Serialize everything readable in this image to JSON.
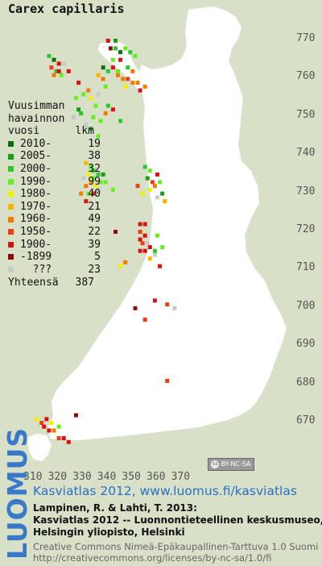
{
  "title": "Carex capillaris",
  "legend": {
    "heading_line1": "Vuusimman",
    "heading_line2": "havainnon",
    "heading_col1": "vuosi",
    "heading_col2": "lkm",
    "entries": [
      {
        "label": "2010-",
        "count": "19",
        "color": "#0a6e0a"
      },
      {
        "label": "2005-",
        "count": "38",
        "color": "#1a9a1a"
      },
      {
        "label": "2000-",
        "count": "32",
        "color": "#2ec82e"
      },
      {
        "label": "1990-",
        "count": "99",
        "color": "#66ee22"
      },
      {
        "label": "1980-",
        "count": "40",
        "color": "#f2f200"
      },
      {
        "label": "1970-",
        "count": "21",
        "color": "#f6b400"
      },
      {
        "label": "1960-",
        "count": "49",
        "color": "#f37a00"
      },
      {
        "label": "1950-",
        "count": "22",
        "color": "#e84010"
      },
      {
        "label": "1900-",
        "count": "39",
        "color": "#d41414"
      },
      {
        "label": "-1899",
        "count": "5",
        "color": "#8a0d0d"
      },
      {
        "label": "???",
        "count": "23",
        "color": "#c8c8c8"
      }
    ],
    "total_label": "Yhteensä",
    "total_count": "387"
  },
  "y_axis_labels": [
    "770",
    "760",
    "750",
    "740",
    "730",
    "720",
    "710",
    "700",
    "690",
    "680",
    "670"
  ],
  "x_axis_labels": [
    "310",
    "320",
    "330",
    "340",
    "350",
    "360",
    "370"
  ],
  "license_badge": "BY-NC-SA",
  "side_logo": "LUOMUS",
  "credits": {
    "line1": "Kasviatlas 2012, www.luomus.fi/kasviatlas",
    "line2": "Lampinen, R. & Lahti, T. 2013:",
    "line3": "Kasviatlas 2012 -- Luonnontieteellinen keskusmuseo,",
    "line4": "Helsingin yliopisto, Helsinki",
    "line5": "Creative Commons Nimeä-Epäkaupallinen-Tarttuva 1.0 Suomi",
    "line6": "http://creativecommons.org/licenses/by-nc-sa/1.0/fi"
  },
  "colors": {
    "land": "#ffffff",
    "background": "#d8e0c8",
    "grid_label": "#555555",
    "credit_blue": "#2a6fc4"
  },
  "observations": [
    {
      "x": 341,
      "y": 768,
      "c": 9
    },
    {
      "x": 343,
      "y": 768,
      "c": 2
    },
    {
      "x": 345,
      "y": 767,
      "c": 0
    },
    {
      "x": 347,
      "y": 768,
      "c": 3
    },
    {
      "x": 349,
      "y": 767,
      "c": 2
    },
    {
      "x": 343,
      "y": 770,
      "c": 1
    },
    {
      "x": 340,
      "y": 770,
      "c": 8
    },
    {
      "x": 351,
      "y": 766,
      "c": 3
    },
    {
      "x": 345,
      "y": 765,
      "c": 8
    },
    {
      "x": 342,
      "y": 765,
      "c": 3
    },
    {
      "x": 348,
      "y": 763,
      "c": 2
    },
    {
      "x": 350,
      "y": 762,
      "c": 6
    },
    {
      "x": 344,
      "y": 761,
      "c": 6
    },
    {
      "x": 346,
      "y": 760,
      "c": 6
    },
    {
      "x": 348,
      "y": 760,
      "c": 7
    },
    {
      "x": 350,
      "y": 759,
      "c": 6
    },
    {
      "x": 352,
      "y": 759,
      "c": 6
    },
    {
      "x": 347,
      "y": 758,
      "c": 4
    },
    {
      "x": 353,
      "y": 757,
      "c": 8
    },
    {
      "x": 355,
      "y": 758,
      "c": 6
    },
    {
      "x": 338,
      "y": 760,
      "c": 6
    },
    {
      "x": 336,
      "y": 761,
      "c": 5
    },
    {
      "x": 339,
      "y": 758,
      "c": 3
    },
    {
      "x": 340,
      "y": 762,
      "c": 2
    },
    {
      "x": 342,
      "y": 763,
      "c": 8
    },
    {
      "x": 338,
      "y": 763,
      "c": 0
    },
    {
      "x": 344,
      "y": 762,
      "c": 3
    },
    {
      "x": 316,
      "y": 766,
      "c": 2
    },
    {
      "x": 318,
      "y": 765,
      "c": 0
    },
    {
      "x": 320,
      "y": 764,
      "c": 8
    },
    {
      "x": 317,
      "y": 763,
      "c": 7
    },
    {
      "x": 319,
      "y": 762,
      "c": 2
    },
    {
      "x": 321,
      "y": 761,
      "c": 3
    },
    {
      "x": 320,
      "y": 762,
      "c": 8
    },
    {
      "x": 322,
      "y": 764,
      "c": 10
    },
    {
      "x": 324,
      "y": 762,
      "c": 8
    },
    {
      "x": 318,
      "y": 761,
      "c": 6
    },
    {
      "x": 328,
      "y": 759,
      "c": 8
    },
    {
      "x": 332,
      "y": 757,
      "c": 6
    },
    {
      "x": 333,
      "y": 755,
      "c": 4
    },
    {
      "x": 327,
      "y": 755,
      "c": 3
    },
    {
      "x": 330,
      "y": 756,
      "c": 3
    },
    {
      "x": 335,
      "y": 753,
      "c": 3
    },
    {
      "x": 329,
      "y": 751,
      "c": 2
    },
    {
      "x": 334,
      "y": 750,
      "c": 3
    },
    {
      "x": 337,
      "y": 749,
      "c": 3
    },
    {
      "x": 340,
      "y": 753,
      "c": 2
    },
    {
      "x": 339,
      "y": 751,
      "c": 6
    },
    {
      "x": 342,
      "y": 752,
      "c": 8
    },
    {
      "x": 345,
      "y": 749,
      "c": 2
    },
    {
      "x": 336,
      "y": 756,
      "c": 10
    },
    {
      "x": 331,
      "y": 748,
      "c": 10
    },
    {
      "x": 333,
      "y": 747,
      "c": 2
    },
    {
      "x": 328,
      "y": 752,
      "c": 1
    },
    {
      "x": 326,
      "y": 750,
      "c": 10
    },
    {
      "x": 336,
      "y": 745,
      "c": 3
    },
    {
      "x": 331,
      "y": 738,
      "c": 5
    },
    {
      "x": 333,
      "y": 737,
      "c": 3
    },
    {
      "x": 334,
      "y": 736,
      "c": 2
    },
    {
      "x": 332,
      "y": 735,
      "c": 4
    },
    {
      "x": 334,
      "y": 734,
      "c": 3
    },
    {
      "x": 336,
      "y": 735,
      "c": 2
    },
    {
      "x": 337,
      "y": 733,
      "c": 3
    },
    {
      "x": 335,
      "y": 732,
      "c": 4
    },
    {
      "x": 333,
      "y": 733,
      "c": 5
    },
    {
      "x": 331,
      "y": 732,
      "c": 6
    },
    {
      "x": 336,
      "y": 731,
      "c": 10
    },
    {
      "x": 338,
      "y": 735,
      "c": 1
    },
    {
      "x": 339,
      "y": 733,
      "c": 3
    },
    {
      "x": 332,
      "y": 730,
      "c": 3
    },
    {
      "x": 334,
      "y": 730,
      "c": 7
    },
    {
      "x": 330,
      "y": 734,
      "c": 10
    },
    {
      "x": 329,
      "y": 730,
      "c": 6
    },
    {
      "x": 331,
      "y": 728,
      "c": 8
    },
    {
      "x": 342,
      "y": 731,
      "c": 3
    },
    {
      "x": 355,
      "y": 737,
      "c": 2
    },
    {
      "x": 357,
      "y": 736,
      "c": 3
    },
    {
      "x": 356,
      "y": 734,
      "c": 1
    },
    {
      "x": 358,
      "y": 733,
      "c": 7
    },
    {
      "x": 360,
      "y": 735,
      "c": 8
    },
    {
      "x": 359,
      "y": 732,
      "c": 6
    },
    {
      "x": 361,
      "y": 733,
      "c": 3
    },
    {
      "x": 357,
      "y": 731,
      "c": 4
    },
    {
      "x": 362,
      "y": 730,
      "c": 1
    },
    {
      "x": 360,
      "y": 729,
      "c": 10
    },
    {
      "x": 363,
      "y": 728,
      "c": 5
    },
    {
      "x": 354,
      "y": 730,
      "c": 4
    },
    {
      "x": 352,
      "y": 732,
      "c": 7
    },
    {
      "x": 353,
      "y": 722,
      "c": 8
    },
    {
      "x": 355,
      "y": 722,
      "c": 8
    },
    {
      "x": 353,
      "y": 720,
      "c": 7
    },
    {
      "x": 355,
      "y": 719,
      "c": 8
    },
    {
      "x": 353,
      "y": 718,
      "c": 8
    },
    {
      "x": 354,
      "y": 717,
      "c": 7
    },
    {
      "x": 356,
      "y": 717,
      "c": 10
    },
    {
      "x": 355,
      "y": 715,
      "c": 8
    },
    {
      "x": 357,
      "y": 716,
      "c": 8
    },
    {
      "x": 353,
      "y": 715,
      "c": 8
    },
    {
      "x": 359,
      "y": 714,
      "c": 10
    },
    {
      "x": 357,
      "y": 713,
      "c": 5
    },
    {
      "x": 360,
      "y": 719,
      "c": 3
    },
    {
      "x": 359,
      "y": 715,
      "c": 2
    },
    {
      "x": 345,
      "y": 711,
      "c": 4
    },
    {
      "x": 361,
      "y": 711,
      "c": 8
    },
    {
      "x": 343,
      "y": 720,
      "c": 9
    },
    {
      "x": 347,
      "y": 712,
      "c": 6
    },
    {
      "x": 362,
      "y": 716,
      "c": 3
    },
    {
      "x": 351,
      "y": 700,
      "c": 9
    },
    {
      "x": 355,
      "y": 697,
      "c": 7
    },
    {
      "x": 364,
      "y": 701,
      "c": 7
    },
    {
      "x": 367,
      "y": 700,
      "c": 10
    },
    {
      "x": 359,
      "y": 702,
      "c": 8
    },
    {
      "x": 364,
      "y": 681,
      "c": 7
    },
    {
      "x": 311,
      "y": 671,
      "c": 4
    },
    {
      "x": 313,
      "y": 670,
      "c": 7
    },
    {
      "x": 315,
      "y": 671,
      "c": 8
    },
    {
      "x": 317,
      "y": 670,
      "c": 4
    },
    {
      "x": 316,
      "y": 668,
      "c": 8
    },
    {
      "x": 318,
      "y": 668,
      "c": 6
    },
    {
      "x": 314,
      "y": 669,
      "c": 8
    },
    {
      "x": 320,
      "y": 666,
      "c": 7
    },
    {
      "x": 322,
      "y": 666,
      "c": 8
    },
    {
      "x": 324,
      "y": 665,
      "c": 8
    },
    {
      "x": 327,
      "y": 672,
      "c": 9
    },
    {
      "x": 320,
      "y": 669,
      "c": 3
    }
  ]
}
